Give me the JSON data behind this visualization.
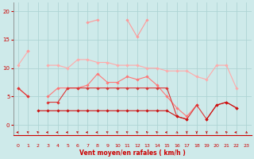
{
  "x": [
    0,
    1,
    2,
    3,
    4,
    5,
    6,
    7,
    8,
    9,
    10,
    11,
    12,
    13,
    14,
    15,
    16,
    17,
    18,
    19,
    20,
    21,
    22,
    23
  ],
  "series": [
    {
      "color": "#ffaaaa",
      "lw": 0.8,
      "marker": "D",
      "markersize": 1.8,
      "y": [
        10.5,
        13.0,
        null,
        10.5,
        10.5,
        10.0,
        11.5,
        11.5,
        11.0,
        11.0,
        10.5,
        10.5,
        10.5,
        10.0,
        10.0,
        9.5,
        9.5,
        9.5,
        8.5,
        8.0,
        10.5,
        10.5,
        6.5,
        null
      ]
    },
    {
      "color": "#ff9999",
      "lw": 0.8,
      "marker": "D",
      "markersize": 1.8,
      "y": [
        null,
        13.0,
        null,
        null,
        null,
        null,
        null,
        18.0,
        18.5,
        null,
        null,
        18.5,
        15.5,
        18.5,
        null,
        null,
        null,
        null,
        null,
        null,
        null,
        null,
        null,
        null
      ]
    },
    {
      "color": "#ff7777",
      "lw": 0.8,
      "marker": "D",
      "markersize": 1.8,
      "y": [
        6.5,
        5.0,
        null,
        5.0,
        6.5,
        6.5,
        6.5,
        7.0,
        9.0,
        7.5,
        7.5,
        8.5,
        8.0,
        8.5,
        7.0,
        5.0,
        3.0,
        1.5,
        3.5,
        null,
        null,
        null,
        null,
        null
      ]
    },
    {
      "color": "#dd3333",
      "lw": 0.8,
      "marker": "D",
      "markersize": 1.8,
      "y": [
        6.5,
        5.0,
        null,
        4.0,
        4.0,
        6.5,
        6.5,
        6.5,
        6.5,
        6.5,
        6.5,
        6.5,
        6.5,
        6.5,
        6.5,
        6.5,
        1.5,
        1.0,
        3.5,
        1.0,
        3.5,
        4.0,
        3.0,
        null
      ]
    },
    {
      "color": "#cc1111",
      "lw": 0.8,
      "marker": "D",
      "markersize": 1.8,
      "y": [
        null,
        null,
        2.5,
        2.5,
        2.5,
        2.5,
        2.5,
        2.5,
        2.5,
        2.5,
        2.5,
        2.5,
        2.5,
        2.5,
        2.5,
        2.5,
        1.5,
        1.0,
        null,
        1.0,
        3.5,
        4.0,
        3.0,
        null
      ]
    },
    {
      "color": "#990000",
      "lw": 0.8,
      "marker": "D",
      "markersize": 1.8,
      "y": [
        null,
        null,
        null,
        null,
        null,
        null,
        null,
        null,
        null,
        null,
        null,
        null,
        null,
        null,
        null,
        null,
        null,
        null,
        null,
        null,
        null,
        null,
        null,
        null
      ]
    }
  ],
  "xlabel": "Vent moyen/en rafales ( km/h )",
  "xlim": [
    -0.5,
    23.5
  ],
  "ylim": [
    -1.8,
    21.5
  ],
  "yticks": [
    0,
    5,
    10,
    15,
    20
  ],
  "xticks": [
    0,
    1,
    2,
    3,
    4,
    5,
    6,
    7,
    8,
    9,
    10,
    11,
    12,
    13,
    14,
    15,
    16,
    17,
    18,
    19,
    20,
    21,
    22,
    23
  ],
  "bg_color": "#ceeaea",
  "grid_color": "#aed4d4",
  "text_color": "#cc0000",
  "arrow_angles": [
    270,
    225,
    215,
    270,
    270,
    270,
    225,
    270,
    270,
    225,
    225,
    225,
    215,
    215,
    215,
    270,
    45,
    0,
    0,
    0,
    45,
    215,
    270,
    45
  ]
}
